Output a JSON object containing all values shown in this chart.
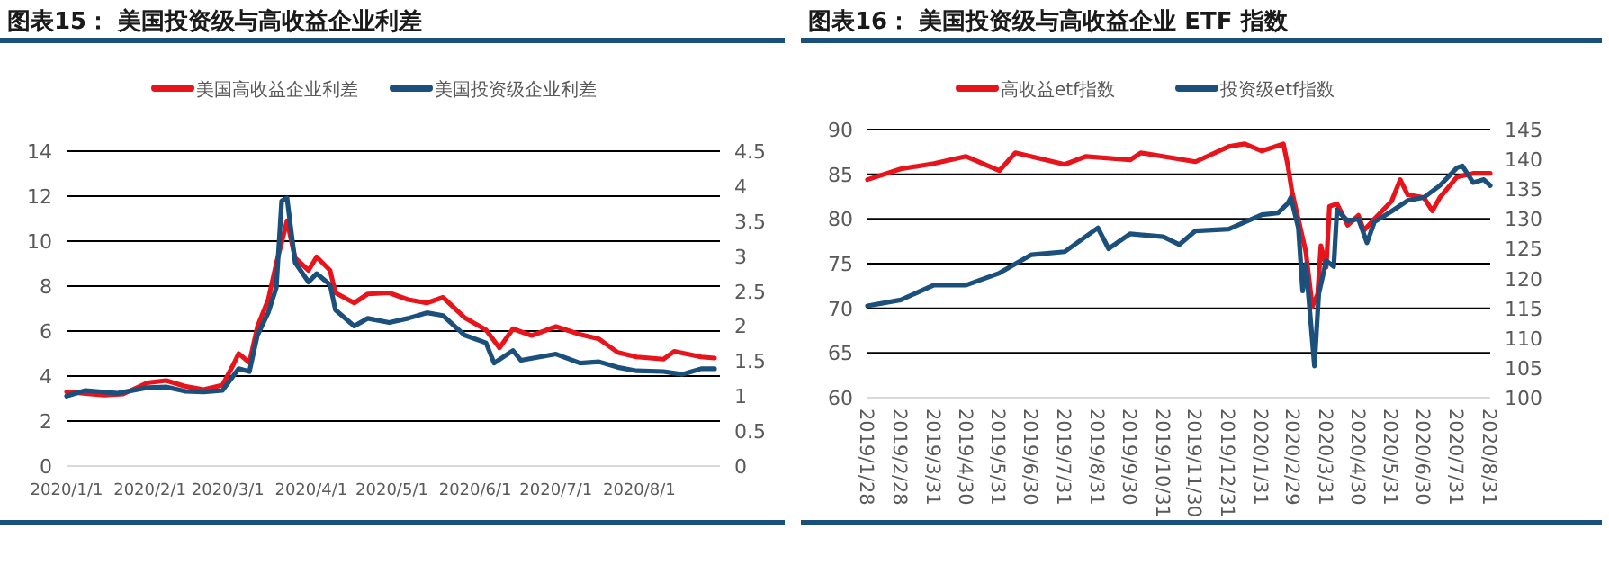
{
  "chart_data": [
    {
      "type": "line",
      "title": "图表15： 美国投资级与高收益企业利差",
      "xlim": [
        "2020-01-01",
        "2020-08-31"
      ],
      "xticks": [
        {
          "value": "2020-01-01",
          "label": "2020/1/1"
        },
        {
          "value": "2020-02-01",
          "label": "2020/2/1"
        },
        {
          "value": "2020-03-01",
          "label": "2020/3/1"
        },
        {
          "value": "2020-04-01",
          "label": "2020/4/1"
        },
        {
          "value": "2020-05-01",
          "label": "2020/5/1"
        },
        {
          "value": "2020-06-01",
          "label": "2020/6/1"
        },
        {
          "value": "2020-07-01",
          "label": "2020/7/1"
        },
        {
          "value": "2020-08-01",
          "label": "2020/8/1"
        }
      ],
      "ylim": [
        0,
        14
      ],
      "yticks": [
        0,
        2,
        4,
        6,
        8,
        10,
        12,
        14
      ],
      "y2lim": [
        0,
        4.5
      ],
      "y2ticks": [
        0,
        0.5,
        1,
        1.5,
        2,
        2.5,
        3,
        3.5,
        4,
        4.5
      ],
      "grid": "y",
      "legend": "top",
      "series": [
        {
          "name": "美国高收益企业利差",
          "color": "#e8141b",
          "x": [
            "2020-01-01",
            "2020-01-10",
            "2020-01-15",
            "2020-01-22",
            "2020-01-31",
            "2020-02-07",
            "2020-02-14",
            "2020-02-21",
            "2020-02-28",
            "2020-03-03",
            "2020-03-05",
            "2020-03-09",
            "2020-03-12",
            "2020-03-16",
            "2020-03-19",
            "2020-03-23",
            "2020-03-26",
            "2020-03-31",
            "2020-04-03",
            "2020-04-08",
            "2020-04-10",
            "2020-04-17",
            "2020-04-22",
            "2020-04-30",
            "2020-05-07",
            "2020-05-14",
            "2020-05-20",
            "2020-05-28",
            "2020-06-05",
            "2020-06-10",
            "2020-06-15",
            "2020-06-22",
            "2020-07-01",
            "2020-07-10",
            "2020-07-17",
            "2020-07-24",
            "2020-07-31",
            "2020-08-10",
            "2020-08-14",
            "2020-08-24",
            "2020-08-29"
          ],
          "values": [
            3.3,
            3.2,
            3.15,
            3.2,
            3.7,
            3.8,
            3.55,
            3.4,
            3.6,
            4.5,
            5.0,
            4.6,
            6.2,
            7.4,
            9.0,
            10.9,
            9.25,
            8.7,
            9.3,
            8.7,
            7.7,
            7.25,
            7.65,
            7.7,
            7.4,
            7.25,
            7.5,
            6.6,
            6.05,
            5.25,
            6.1,
            5.8,
            6.2,
            5.85,
            5.65,
            5.05,
            4.85,
            4.75,
            5.1,
            4.85,
            4.8
          ]
        },
        {
          "name": "美国投资级企业利差",
          "color": "#1b4f7c",
          "axis": "y2",
          "x": [
            "2020-01-01",
            "2020-01-08",
            "2020-01-20",
            "2020-01-31",
            "2020-02-07",
            "2020-02-14",
            "2020-02-21",
            "2020-02-28",
            "2020-03-05",
            "2020-03-09",
            "2020-03-12",
            "2020-03-16",
            "2020-03-19",
            "2020-03-21",
            "2020-03-23",
            "2020-03-26",
            "2020-03-31",
            "2020-04-03",
            "2020-04-08",
            "2020-04-10",
            "2020-04-17",
            "2020-04-22",
            "2020-04-30",
            "2020-05-07",
            "2020-05-14",
            "2020-05-20",
            "2020-05-28",
            "2020-06-05",
            "2020-06-08",
            "2020-06-15",
            "2020-06-18",
            "2020-07-01",
            "2020-07-10",
            "2020-07-17",
            "2020-07-24",
            "2020-07-31",
            "2020-08-10",
            "2020-08-17",
            "2020-08-24",
            "2020-08-29"
          ],
          "values": [
            1.0,
            1.08,
            1.04,
            1.12,
            1.13,
            1.07,
            1.06,
            1.08,
            1.39,
            1.35,
            1.87,
            2.19,
            2.55,
            3.79,
            3.83,
            2.91,
            2.63,
            2.75,
            2.59,
            2.23,
            2.0,
            2.11,
            2.05,
            2.11,
            2.19,
            2.15,
            1.87,
            1.76,
            1.47,
            1.65,
            1.51,
            1.6,
            1.47,
            1.49,
            1.41,
            1.36,
            1.35,
            1.31,
            1.39,
            1.39
          ]
        }
      ]
    },
    {
      "type": "line",
      "title": "图表16： 美国投资级与高收益企业 ETF 指数",
      "xlim": [
        "2019-01-28",
        "2020-08-31"
      ],
      "xticks": [
        {
          "value": "2019-01-28",
          "label": "2019/1/28"
        },
        {
          "value": "2019-02-28",
          "label": "2019/2/28"
        },
        {
          "value": "2019-03-31",
          "label": "2019/3/31"
        },
        {
          "value": "2019-04-30",
          "label": "2019/4/30"
        },
        {
          "value": "2019-05-31",
          "label": "2019/5/31"
        },
        {
          "value": "2019-06-30",
          "label": "2019/6/30"
        },
        {
          "value": "2019-07-31",
          "label": "2019/7/31"
        },
        {
          "value": "2019-08-31",
          "label": "2019/8/31"
        },
        {
          "value": "2019-09-30",
          "label": "2019/9/30"
        },
        {
          "value": "2019-10-31",
          "label": "2019/10/31"
        },
        {
          "value": "2019-11-30",
          "label": "2019/11/30"
        },
        {
          "value": "2019-12-31",
          "label": "2019/12/31"
        },
        {
          "value": "2020-01-31",
          "label": "2020/1/31"
        },
        {
          "value": "2020-02-29",
          "label": "2020/2/29"
        },
        {
          "value": "2020-03-31",
          "label": "2020/3/31"
        },
        {
          "value": "2020-04-30",
          "label": "2020/4/30"
        },
        {
          "value": "2020-05-31",
          "label": "2020/5/31"
        },
        {
          "value": "2020-06-30",
          "label": "2020/6/30"
        },
        {
          "value": "2020-07-31",
          "label": "2020/7/31"
        },
        {
          "value": "2020-08-31",
          "label": "2020/8/31"
        }
      ],
      "ylim": [
        60,
        90
      ],
      "yticks": [
        60,
        65,
        70,
        75,
        80,
        85,
        90
      ],
      "y2lim": [
        100,
        145
      ],
      "y2ticks": [
        100,
        105,
        110,
        115,
        120,
        125,
        130,
        135,
        140,
        145
      ],
      "grid": "y",
      "legend": "top",
      "series": [
        {
          "name": "高收益etf指数",
          "color": "#e8141b",
          "x": [
            "2019-01-28",
            "2019-02-28",
            "2019-03-31",
            "2019-04-30",
            "2019-05-31",
            "2019-06-15",
            "2019-07-31",
            "2019-08-20",
            "2019-09-30",
            "2019-10-10",
            "2019-11-30",
            "2019-12-31",
            "2020-01-15",
            "2020-01-31",
            "2020-02-20",
            "2020-02-24",
            "2020-02-28",
            "2020-03-12",
            "2020-03-18",
            "2020-03-23",
            "2020-03-26",
            "2020-03-31",
            "2020-04-03",
            "2020-04-10",
            "2020-04-20",
            "2020-04-30",
            "2020-05-05",
            "2020-05-15",
            "2020-05-31",
            "2020-06-08",
            "2020-06-15",
            "2020-06-30",
            "2020-07-08",
            "2020-07-15",
            "2020-07-31",
            "2020-08-15",
            "2020-08-31"
          ],
          "values": [
            84.4,
            85.6,
            86.2,
            87.0,
            85.4,
            87.4,
            86.1,
            87.0,
            86.6,
            87.4,
            86.4,
            88.1,
            88.4,
            87.6,
            88.4,
            86.1,
            83.1,
            76.3,
            70.2,
            71.6,
            77.0,
            74.6,
            81.4,
            81.7,
            79.3,
            80.4,
            78.7,
            80.0,
            82.0,
            84.4,
            82.7,
            82.4,
            80.9,
            82.4,
            84.7,
            85.1,
            85.1
          ]
        },
        {
          "name": "投资级etf指数",
          "color": "#1b4f7c",
          "axis": "y2",
          "x": [
            "2019-01-28",
            "2019-02-28",
            "2019-03-31",
            "2019-04-30",
            "2019-05-31",
            "2019-06-30",
            "2019-07-31",
            "2019-08-31",
            "2019-09-10",
            "2019-09-30",
            "2019-10-31",
            "2019-11-15",
            "2019-11-30",
            "2019-12-31",
            "2020-01-31",
            "2020-02-15",
            "2020-02-24",
            "2020-02-27",
            "2020-03-05",
            "2020-03-09",
            "2020-03-12",
            "2020-03-20",
            "2020-03-24",
            "2020-03-31",
            "2020-04-07",
            "2020-04-10",
            "2020-04-20",
            "2020-04-30",
            "2020-05-08",
            "2020-05-15",
            "2020-05-31",
            "2020-06-15",
            "2020-06-30",
            "2020-07-15",
            "2020-07-31",
            "2020-08-05",
            "2020-08-15",
            "2020-08-25",
            "2020-08-31"
          ],
          "values": [
            115.4,
            116.4,
            118.9,
            118.9,
            120.9,
            124.0,
            124.5,
            128.5,
            125.0,
            127.5,
            127.0,
            125.7,
            128.0,
            128.3,
            130.7,
            131.0,
            132.6,
            133.6,
            128.5,
            117.9,
            122.4,
            105.3,
            117.4,
            123.0,
            122.0,
            131.5,
            129.7,
            130.0,
            126.0,
            129.5,
            131.3,
            133.1,
            133.6,
            135.6,
            138.6,
            138.9,
            136.1,
            136.6,
            135.6
          ]
        }
      ]
    }
  ]
}
